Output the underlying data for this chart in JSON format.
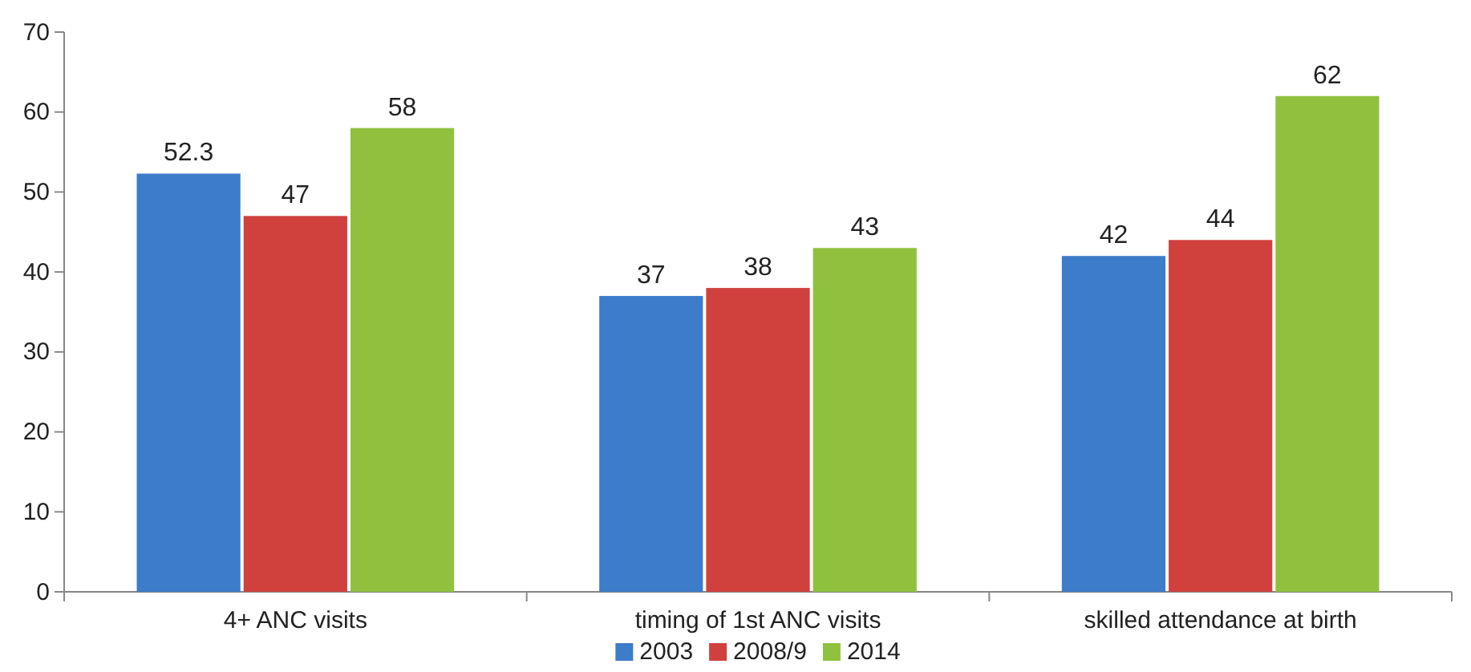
{
  "chart_data": {
    "type": "bar",
    "categories": [
      "4+ ANC visits",
      "timing of 1st ANC visits",
      "skilled attendance at birth"
    ],
    "series": [
      {
        "name": "2003",
        "color": "#3d7cc9",
        "values": [
          52.3,
          37,
          42
        ]
      },
      {
        "name": "2008/9",
        "color": "#d0413e",
        "values": [
          47,
          38,
          44
        ]
      },
      {
        "name": "2014",
        "color": "#8fc13f",
        "values": [
          58,
          43,
          62
        ]
      }
    ],
    "ylim": [
      0,
      70
    ],
    "yticks": [
      0,
      10,
      20,
      30,
      40,
      50,
      60,
      70
    ],
    "data_labels": true,
    "legend": "bottom",
    "grid": false
  }
}
